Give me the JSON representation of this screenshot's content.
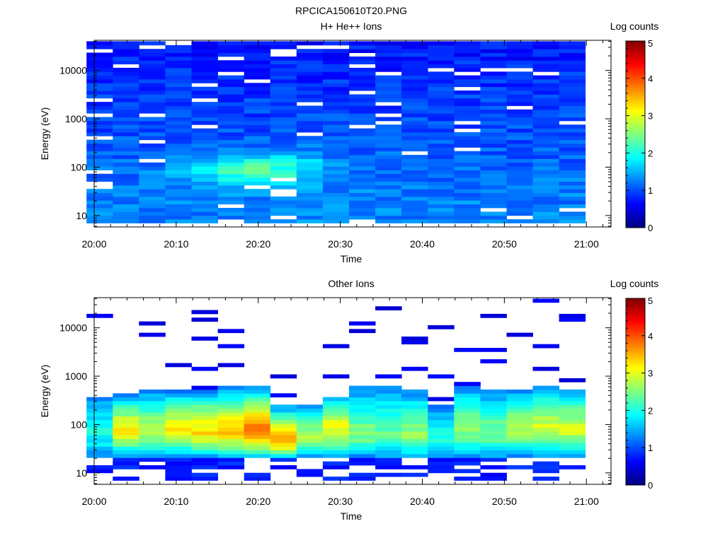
{
  "figure_title": "RPCICA150610T20.PNG",
  "chart_data": [
    {
      "type": "heatmap",
      "title": "H+ He++ Ions",
      "xlabel": "Time",
      "ylabel": "Energy (eV)",
      "colorbar_label": "Log counts",
      "colorbar_range": [
        0,
        5
      ],
      "colorbar_ticks": [
        "0",
        "1",
        "2",
        "3",
        "4",
        "5"
      ],
      "x_range": [
        "20:00",
        "21:03"
      ],
      "y_range": [
        5.8,
        42000
      ],
      "y_scale": "log",
      "x_ticks": [
        "20:00",
        "20:10",
        "20:20",
        "20:30",
        "20:40",
        "20:50",
        "21:00"
      ],
      "y_ticks": [
        "10",
        "100",
        "1000",
        "10000"
      ],
      "time_columns": [
        "20:00:40",
        "20:03:52",
        "20:07:04",
        "20:10:16",
        "20:13:28",
        "20:16:40",
        "20:19:52",
        "20:23:04",
        "20:26:16",
        "20:29:28",
        "20:32:40",
        "20:35:52",
        "20:39:04",
        "20:42:16",
        "20:45:28",
        "20:48:40",
        "20:51:52",
        "20:55:04",
        "20:58:16"
      ],
      "profile": {
        "low_energy_log_counts": 1.3,
        "high_energy_log_counts": 0.7,
        "peak_time": "20:20",
        "peak_energy_eV": 90,
        "peak_log_counts": 2.4
      }
    },
    {
      "type": "heatmap",
      "title": "Other Ions",
      "xlabel": "Time",
      "ylabel": "Energy (eV)",
      "colorbar_label": "Log counts",
      "colorbar_range": [
        0,
        5
      ],
      "colorbar_ticks": [
        "0",
        "1",
        "2",
        "3",
        "4",
        "5"
      ],
      "x_range": [
        "20:00",
        "21:03"
      ],
      "y_range": [
        5.8,
        42000
      ],
      "y_scale": "log",
      "x_ticks": [
        "20:00",
        "20:10",
        "20:20",
        "20:30",
        "20:40",
        "20:50",
        "21:00"
      ],
      "y_ticks": [
        "10",
        "100",
        "1000",
        "10000"
      ],
      "time_columns": [
        "20:00:40",
        "20:03:52",
        "20:07:04",
        "20:10:16",
        "20:13:28",
        "20:16:40",
        "20:19:52",
        "20:23:04",
        "20:26:16",
        "20:29:28",
        "20:32:40",
        "20:35:52",
        "20:39:04",
        "20:42:16",
        "20:45:28",
        "20:48:40",
        "20:51:52",
        "20:55:04",
        "20:58:16"
      ],
      "peak_log_counts_by_column": [
        2.0,
        3.2,
        2.8,
        3.2,
        3.3,
        3.4,
        3.9,
        3.5,
        2.7,
        3.1,
        2.5,
        2.4,
        2.6,
        2.0,
        2.6,
        2.5,
        2.8,
        2.9,
        2.9
      ],
      "peak_energy_eV_by_column": [
        70,
        80,
        80,
        80,
        70,
        70,
        70,
        45,
        60,
        90,
        60,
        60,
        60,
        50,
        90,
        70,
        90,
        90,
        80
      ],
      "band_lower_eV": 20,
      "band_upper_eV_by_column": [
        390,
        420,
        500,
        500,
        520,
        600,
        650,
        260,
        280,
        400,
        620,
        600,
        540,
        280,
        600,
        500,
        560,
        600,
        560
      ]
    }
  ],
  "colors": {
    "colormap": [
      "#00007f",
      "#0000ff",
      "#007fff",
      "#00ffff",
      "#7fff7f",
      "#ffff00",
      "#ff7f00",
      "#ff0000",
      "#7f0000"
    ]
  }
}
